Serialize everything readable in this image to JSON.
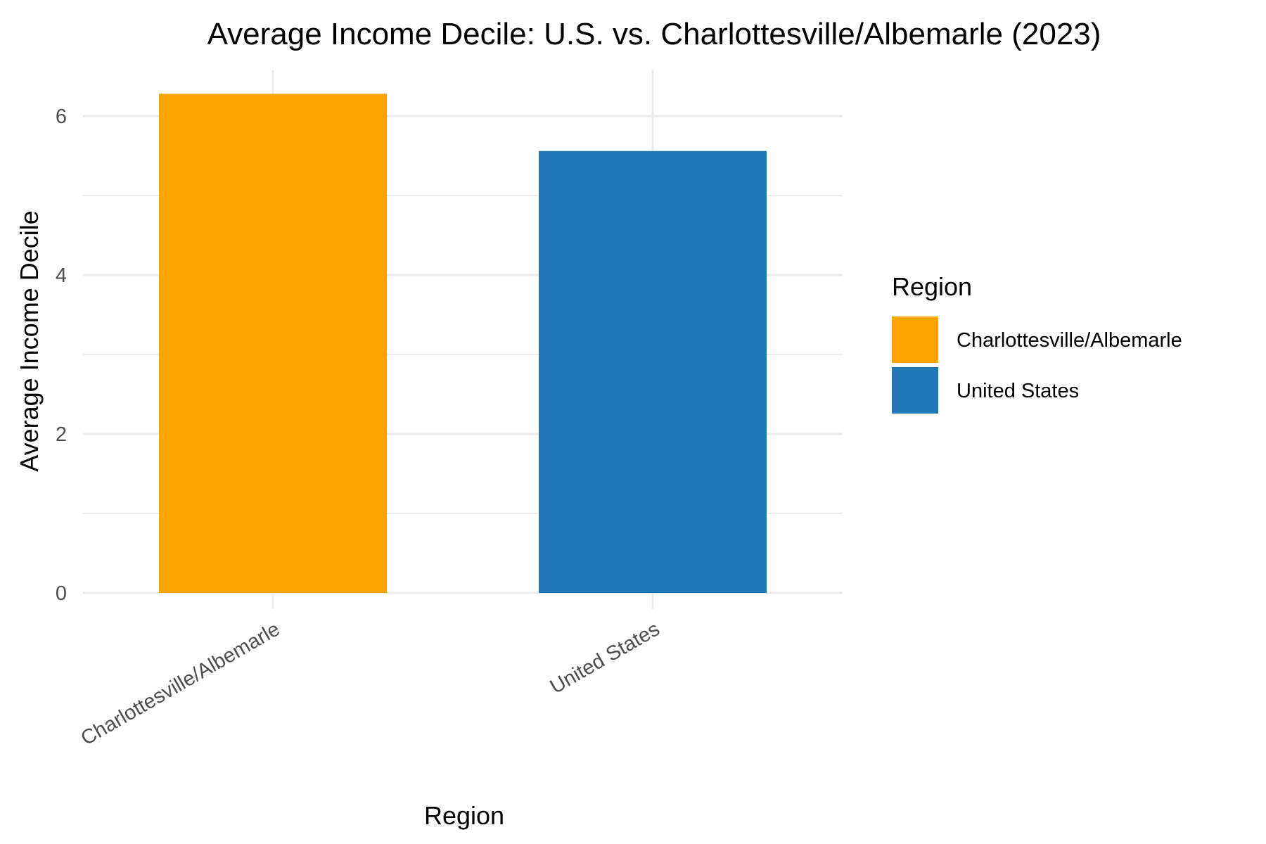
{
  "chart_data": {
    "type": "bar",
    "title": "Average Income Decile: U.S. vs. Charlottesville/Albemarle (2023)",
    "xlabel": "Region",
    "ylabel": "Average Income Decile",
    "categories": [
      "Charlottesville/Albemarle",
      "United States"
    ],
    "values": [
      6.28,
      5.56
    ],
    "colors": [
      "#FFA500",
      "#1F77B4"
    ],
    "ylim": [
      0,
      6.6
    ],
    "yticks": [
      0,
      2,
      4,
      6
    ],
    "grid": true,
    "legend": {
      "title": "Region",
      "position": "right",
      "entries": [
        "Charlottesville/Albemarle",
        "United States"
      ]
    }
  }
}
